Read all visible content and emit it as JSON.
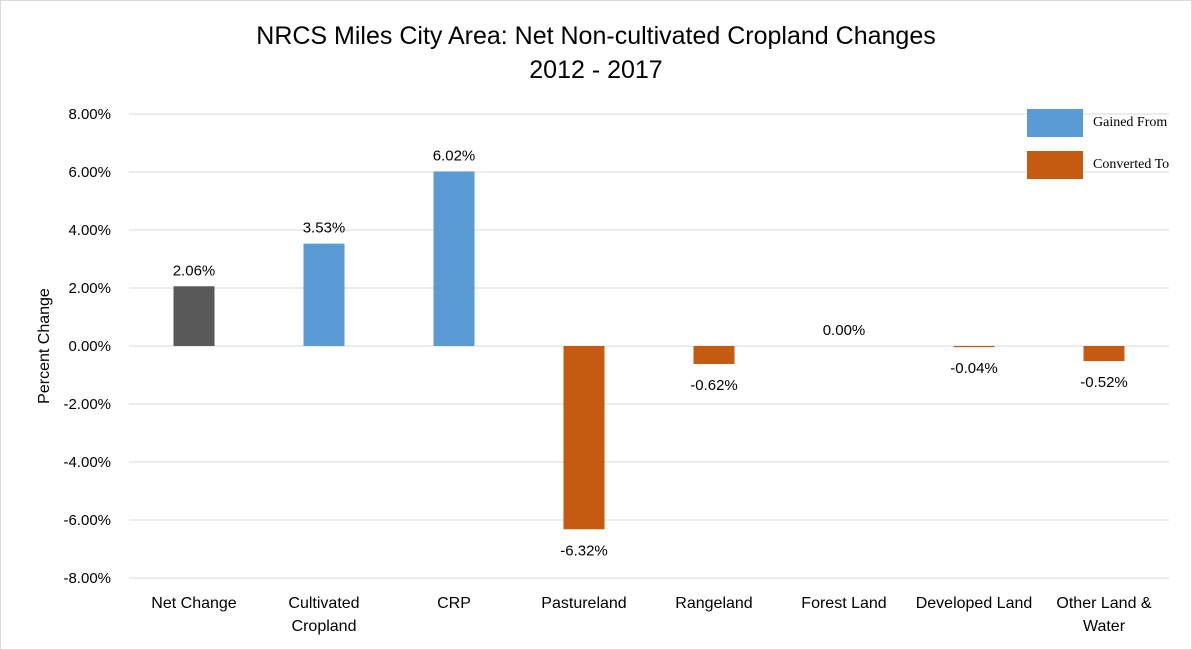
{
  "chart_data": {
    "type": "bar",
    "title": "NRCS Miles City Area: Net Non-cultivated Cropland Changes",
    "subtitle": "2012 - 2017",
    "xlabel": "",
    "ylabel": "Percent Change",
    "ylim": [
      -8,
      8
    ],
    "ytick_step": 2,
    "ytick_labels": [
      "8.00%",
      "6.00%",
      "4.00%",
      "2.00%",
      "0.00%",
      "-2.00%",
      "-4.00%",
      "-6.00%",
      "-8.00%"
    ],
    "grid": true,
    "legend_position": "top-right",
    "categories": [
      [
        "Net Change"
      ],
      [
        "Cultivated",
        "Cropland"
      ],
      [
        "CRP"
      ],
      [
        "Pastureland"
      ],
      [
        "Rangeland"
      ],
      [
        "Forest Land"
      ],
      [
        "Developed Land"
      ],
      [
        "Other Land &",
        "Water"
      ]
    ],
    "values": [
      2.06,
      3.53,
      6.02,
      -6.32,
      -0.62,
      0.0,
      -0.04,
      -0.52
    ],
    "data_labels": [
      "2.06%",
      "3.53%",
      "6.02%",
      "-6.32%",
      "-0.62%",
      "0.00%",
      "-0.04%",
      "-0.52%"
    ],
    "bar_groups": [
      "net",
      "gained",
      "gained",
      "converted",
      "converted",
      "converted",
      "converted",
      "converted"
    ],
    "colors": {
      "net": "#595959",
      "gained": "#5b9bd5",
      "converted": "#c55a11",
      "grid": "#d9d9d9",
      "axis_text": "#000000"
    },
    "legend": [
      {
        "label": "Gained From",
        "group": "gained"
      },
      {
        "label": "Converted To",
        "group": "converted"
      }
    ]
  }
}
